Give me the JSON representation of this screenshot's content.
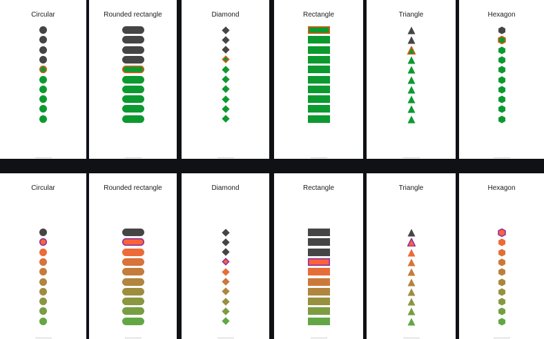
{
  "top": {
    "panels": [
      {
        "title": "Circular",
        "shape": "circle"
      },
      {
        "title": "Rounded rectangle",
        "shape": "pill"
      },
      {
        "title": "Diamond",
        "shape": "diamond"
      },
      {
        "title": "Rectangle",
        "shape": "rect"
      },
      {
        "title": "Triangle",
        "shape": "tri"
      },
      {
        "title": "Hexagon",
        "shape": "hex"
      }
    ],
    "counts": [
      {
        "total": 10,
        "gray": 4,
        "selected": 4
      },
      {
        "total": 10,
        "gray": 4,
        "selected": 4
      },
      {
        "total": 10,
        "gray": 3,
        "selected": 3
      },
      {
        "total": 10,
        "gray": 0,
        "selected": 0
      },
      {
        "total": 10,
        "gray": 2,
        "selected": 2
      },
      {
        "total": 10,
        "gray": 1,
        "selected": 1
      }
    ],
    "colors": {
      "gray": "#454545",
      "active": "#0c9a30",
      "selected_border": "#e05a12"
    }
  },
  "bottom": {
    "panels": [
      {
        "title": "Circular",
        "shape": "circle"
      },
      {
        "title": "Rounded rectangle",
        "shape": "pill"
      },
      {
        "title": "Diamond",
        "shape": "diamond"
      },
      {
        "title": "Rectangle",
        "shape": "rect"
      },
      {
        "title": "Triangle",
        "shape": "tri"
      },
      {
        "title": "Hexagon",
        "shape": "hex"
      }
    ],
    "counts": [
      {
        "total": 10,
        "gray": 1,
        "selected": 1
      },
      {
        "total": 10,
        "gray": 1,
        "selected": 1
      },
      {
        "total": 10,
        "gray": 3,
        "selected": 3
      },
      {
        "total": 10,
        "gray": 3,
        "selected": 3
      },
      {
        "total": 10,
        "gray": 1,
        "selected": 1
      },
      {
        "total": 10,
        "gray": 0,
        "selected": 0
      }
    ],
    "colors": {
      "gray": "#454545",
      "gradient_start": "#ff6236",
      "gradient_end": "#63a744",
      "selected_border": "#8a33a8"
    }
  }
}
